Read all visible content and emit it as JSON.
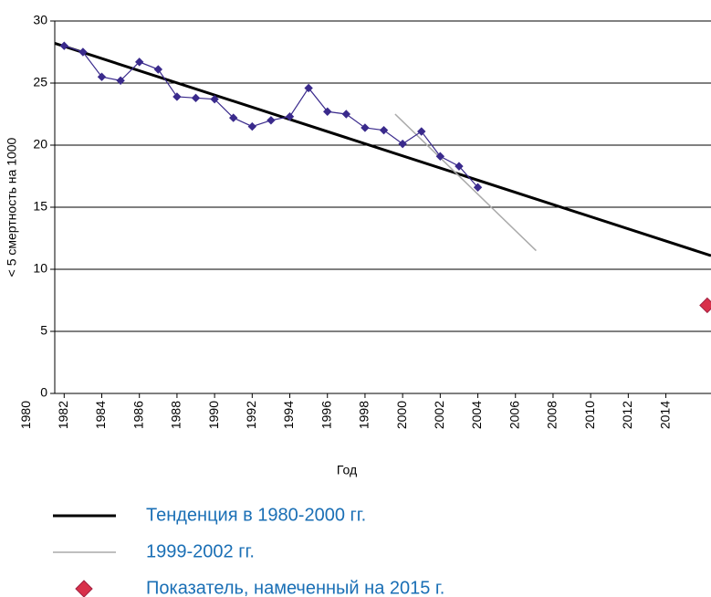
{
  "chart_data": {
    "type": "line",
    "x_label": "Год",
    "y_label": "< 5 смертность на 1000",
    "xlim": [
      1981.5,
      2016.4
    ],
    "xticks": [
      1980,
      1982,
      1984,
      1986,
      1988,
      1990,
      1992,
      1994,
      1996,
      1998,
      2000,
      2002,
      2004,
      2006,
      2008,
      2010,
      2012,
      2014
    ],
    "ylim": [
      0,
      30
    ],
    "yticks": [
      0,
      5,
      10,
      15,
      20,
      25,
      30
    ],
    "grid": true,
    "legend": "bottom",
    "series": [
      {
        "name": "Тенденция в 1980-2000 гг.",
        "color": "#000000",
        "style": "line",
        "width": 3,
        "x": [
          1981.5,
          2016.4
        ],
        "values": [
          28.2,
          11.1
        ]
      },
      {
        "name": "1999-2002 гг.",
        "color": "#aaaaaa",
        "style": "line",
        "width": 1.5,
        "x": [
          1999.6,
          2007.1
        ],
        "values": [
          22.5,
          11.5
        ]
      },
      {
        "name": "Показатель, намеченный на 2015 г.",
        "color": "#d8304a",
        "style": "marker",
        "x": [
          2016.2
        ],
        "values": [
          7.1
        ]
      },
      {
        "color": "#3a2a8c",
        "style": "line+marker",
        "width": 1.2,
        "x": [
          1982,
          1983,
          1984,
          1985,
          1986,
          1987,
          1988,
          1989,
          1990,
          1991,
          1992,
          1993,
          1994,
          1995,
          1996,
          1997,
          1998,
          1999,
          2000,
          2001,
          2002,
          2003,
          2004
        ],
        "values": [
          28.0,
          27.5,
          25.5,
          25.2,
          26.7,
          26.1,
          23.9,
          23.8,
          23.7,
          22.2,
          21.5,
          22.0,
          22.3,
          24.6,
          22.7,
          22.5,
          21.4,
          21.2,
          20.1,
          21.1,
          19.1,
          18.3,
          16.6
        ]
      }
    ]
  }
}
